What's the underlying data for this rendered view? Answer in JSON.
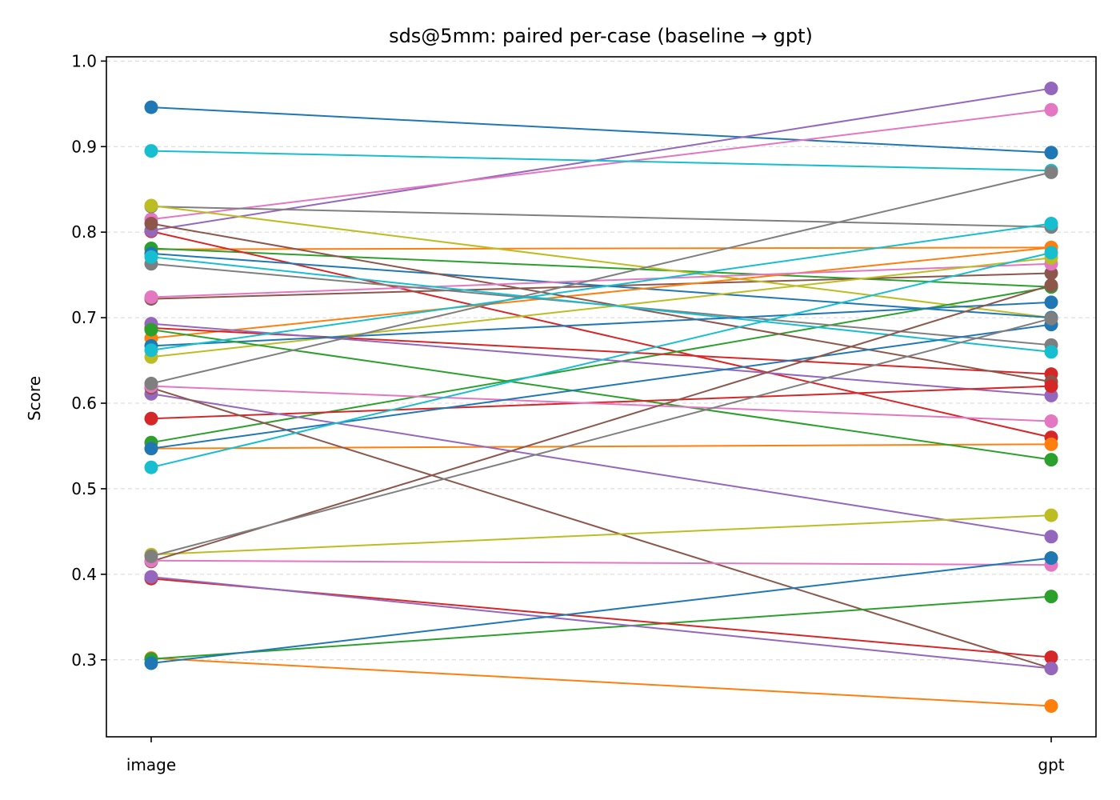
{
  "chart_data": {
    "type": "line",
    "title": "sds@5mm: paired per-case (baseline → gpt)",
    "xlabel": "",
    "ylabel": "Score",
    "categories": [
      "image",
      "gpt"
    ],
    "ylim": [
      0.21,
      1.005
    ],
    "yticks": [
      0.3,
      0.4,
      0.5,
      0.6,
      0.7,
      0.8,
      0.9,
      1.0
    ],
    "ytick_labels": [
      "0.3",
      "0.4",
      "0.5",
      "0.6",
      "0.7",
      "0.8",
      "0.9",
      "1.0"
    ],
    "grid": "y-dashed",
    "legend": "none",
    "palette": [
      "#1f77b4",
      "#ff7f0e",
      "#2ca02c",
      "#d62728",
      "#9467bd",
      "#8c564b",
      "#e377c2",
      "#7f7f7f",
      "#bcbd22",
      "#17becf"
    ],
    "series": [
      {
        "values": [
          0.946,
          0.893
        ],
        "color": "#1f77b4"
      },
      {
        "values": [
          0.78,
          0.782
        ],
        "color": "#ff7f0e"
      },
      {
        "values": [
          0.781,
          0.736
        ],
        "color": "#2ca02c"
      },
      {
        "values": [
          0.801,
          0.56
        ],
        "color": "#d62728"
      },
      {
        "values": [
          0.802,
          0.968
        ],
        "color": "#9467bd"
      },
      {
        "values": [
          0.722,
          0.752
        ],
        "color": "#8c564b"
      },
      {
        "values": [
          0.815,
          0.943
        ],
        "color": "#e377c2"
      },
      {
        "values": [
          0.83,
          0.806
        ],
        "color": "#7f7f7f"
      },
      {
        "values": [
          0.831,
          0.7
        ],
        "color": "#bcbd22"
      },
      {
        "values": [
          0.895,
          0.872
        ],
        "color": "#17becf"
      },
      {
        "values": [
          0.775,
          0.7
        ],
        "color": "#1f77b4"
      },
      {
        "values": [
          0.676,
          0.782
        ],
        "color": "#ff7f0e"
      },
      {
        "values": [
          0.554,
          0.736
        ],
        "color": "#2ca02c"
      },
      {
        "values": [
          0.688,
          0.634
        ],
        "color": "#d62728"
      },
      {
        "values": [
          0.693,
          0.609
        ],
        "color": "#9467bd"
      },
      {
        "values": [
          0.81,
          0.625
        ],
        "color": "#8c564b"
      },
      {
        "values": [
          0.724,
          0.763
        ],
        "color": "#e377c2"
      },
      {
        "values": [
          0.763,
          0.668
        ],
        "color": "#7f7f7f"
      },
      {
        "values": [
          0.654,
          0.77
        ],
        "color": "#bcbd22"
      },
      {
        "values": [
          0.771,
          0.66
        ],
        "color": "#17becf"
      },
      {
        "values": [
          0.667,
          0.718
        ],
        "color": "#1f77b4"
      },
      {
        "values": [
          0.547,
          0.552
        ],
        "color": "#ff7f0e"
      },
      {
        "values": [
          0.686,
          0.534
        ],
        "color": "#2ca02c"
      },
      {
        "values": [
          0.582,
          0.62
        ],
        "color": "#d62728"
      },
      {
        "values": [
          0.611,
          0.444
        ],
        "color": "#9467bd"
      },
      {
        "values": [
          0.618,
          0.29
        ],
        "color": "#8c564b"
      },
      {
        "values": [
          0.62,
          0.579
        ],
        "color": "#e377c2"
      },
      {
        "values": [
          0.623,
          0.87
        ],
        "color": "#7f7f7f"
      },
      {
        "values": [
          0.423,
          0.469
        ],
        "color": "#bcbd22"
      },
      {
        "values": [
          0.662,
          0.81
        ],
        "color": "#17becf"
      },
      {
        "values": [
          0.547,
          0.692
        ],
        "color": "#1f77b4"
      },
      {
        "values": [
          0.302,
          0.246
        ],
        "color": "#ff7f0e"
      },
      {
        "values": [
          0.301,
          0.374
        ],
        "color": "#2ca02c"
      },
      {
        "values": [
          0.395,
          0.303
        ],
        "color": "#d62728"
      },
      {
        "values": [
          0.397,
          0.29
        ],
        "color": "#9467bd"
      },
      {
        "values": [
          0.415,
          0.738
        ],
        "color": "#8c564b"
      },
      {
        "values": [
          0.416,
          0.411
        ],
        "color": "#e377c2"
      },
      {
        "values": [
          0.421,
          0.699
        ],
        "color": "#7f7f7f"
      },
      {
        "values": [
          0.525,
          0.776
        ],
        "color": "#17becf"
      },
      {
        "values": [
          0.296,
          0.419
        ],
        "color": "#1f77b4"
      }
    ]
  }
}
